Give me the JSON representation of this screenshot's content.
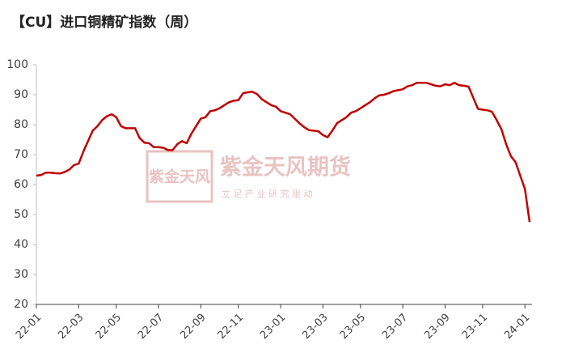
{
  "chart_data": {
    "type": "line",
    "title": "【CU】进口铜精矿指数（周）",
    "watermark": {
      "logo": "紫金天风",
      "name": "紫金天风期货",
      "slogan": "立 足 产 业   研 究 驱 动"
    },
    "categories": [
      "22-01",
      null,
      null,
      null,
      null,
      null,
      null,
      null,
      null,
      "22-03",
      null,
      null,
      null,
      null,
      null,
      null,
      null,
      "22-05",
      null,
      null,
      null,
      null,
      null,
      null,
      null,
      null,
      "22-07",
      null,
      null,
      null,
      null,
      null,
      null,
      null,
      null,
      "22-09",
      null,
      null,
      null,
      null,
      null,
      null,
      null,
      "22-11",
      null,
      null,
      null,
      null,
      null,
      null,
      null,
      null,
      "23-01",
      null,
      null,
      null,
      null,
      null,
      null,
      null,
      null,
      "23-03",
      null,
      null,
      null,
      null,
      null,
      null,
      null,
      "23-05",
      null,
      null,
      null,
      null,
      null,
      null,
      null,
      null,
      "23-07",
      null,
      null,
      null,
      null,
      null,
      null,
      null,
      null,
      "23-09",
      null,
      null,
      null,
      null,
      null,
      null,
      null,
      "23-11",
      null,
      null,
      null,
      null,
      null,
      null,
      null,
      null,
      "24-01",
      null
    ],
    "series": [
      {
        "name": "进口铜精矿指数",
        "color": "#c00000",
        "values": [
          63,
          63.2,
          64,
          64,
          63.8,
          63.7,
          64.2,
          65,
          66.5,
          67,
          71,
          74.5,
          78,
          79.5,
          81.5,
          82.8,
          83.5,
          82.5,
          79.5,
          78.8,
          78.8,
          78.8,
          75.5,
          74,
          73.8,
          72.5,
          72.5,
          72.3,
          71.5,
          71.5,
          73.5,
          74.5,
          73.8,
          77,
          79.5,
          82,
          82.5,
          84.5,
          84.8,
          85.5,
          86.5,
          87.5,
          88,
          88.2,
          90.5,
          90.8,
          91,
          90.2,
          88.5,
          87.5,
          86.5,
          86,
          84.5,
          84,
          83.5,
          82,
          80.5,
          79.2,
          78.2,
          78,
          77.8,
          76.5,
          75.8,
          78,
          80.5,
          81.5,
          82.5,
          84,
          84.5,
          85.5,
          86.5,
          87.5,
          88.8,
          89.8,
          90,
          90.5,
          91.2,
          91.5,
          91.8,
          92.8,
          93.2,
          94,
          94,
          94,
          93.5,
          93,
          92.8,
          93.5,
          93.2,
          94,
          93.2,
          93,
          92.7,
          89,
          85.3,
          85,
          84.8,
          84.3,
          81.5,
          78.5,
          73.5,
          69.5,
          67.5,
          63,
          58.5,
          47.5
        ]
      }
    ],
    "ylim": [
      20,
      100
    ],
    "yticks": [
      20,
      30,
      40,
      50,
      60,
      70,
      80,
      90,
      100
    ],
    "grid": false
  }
}
